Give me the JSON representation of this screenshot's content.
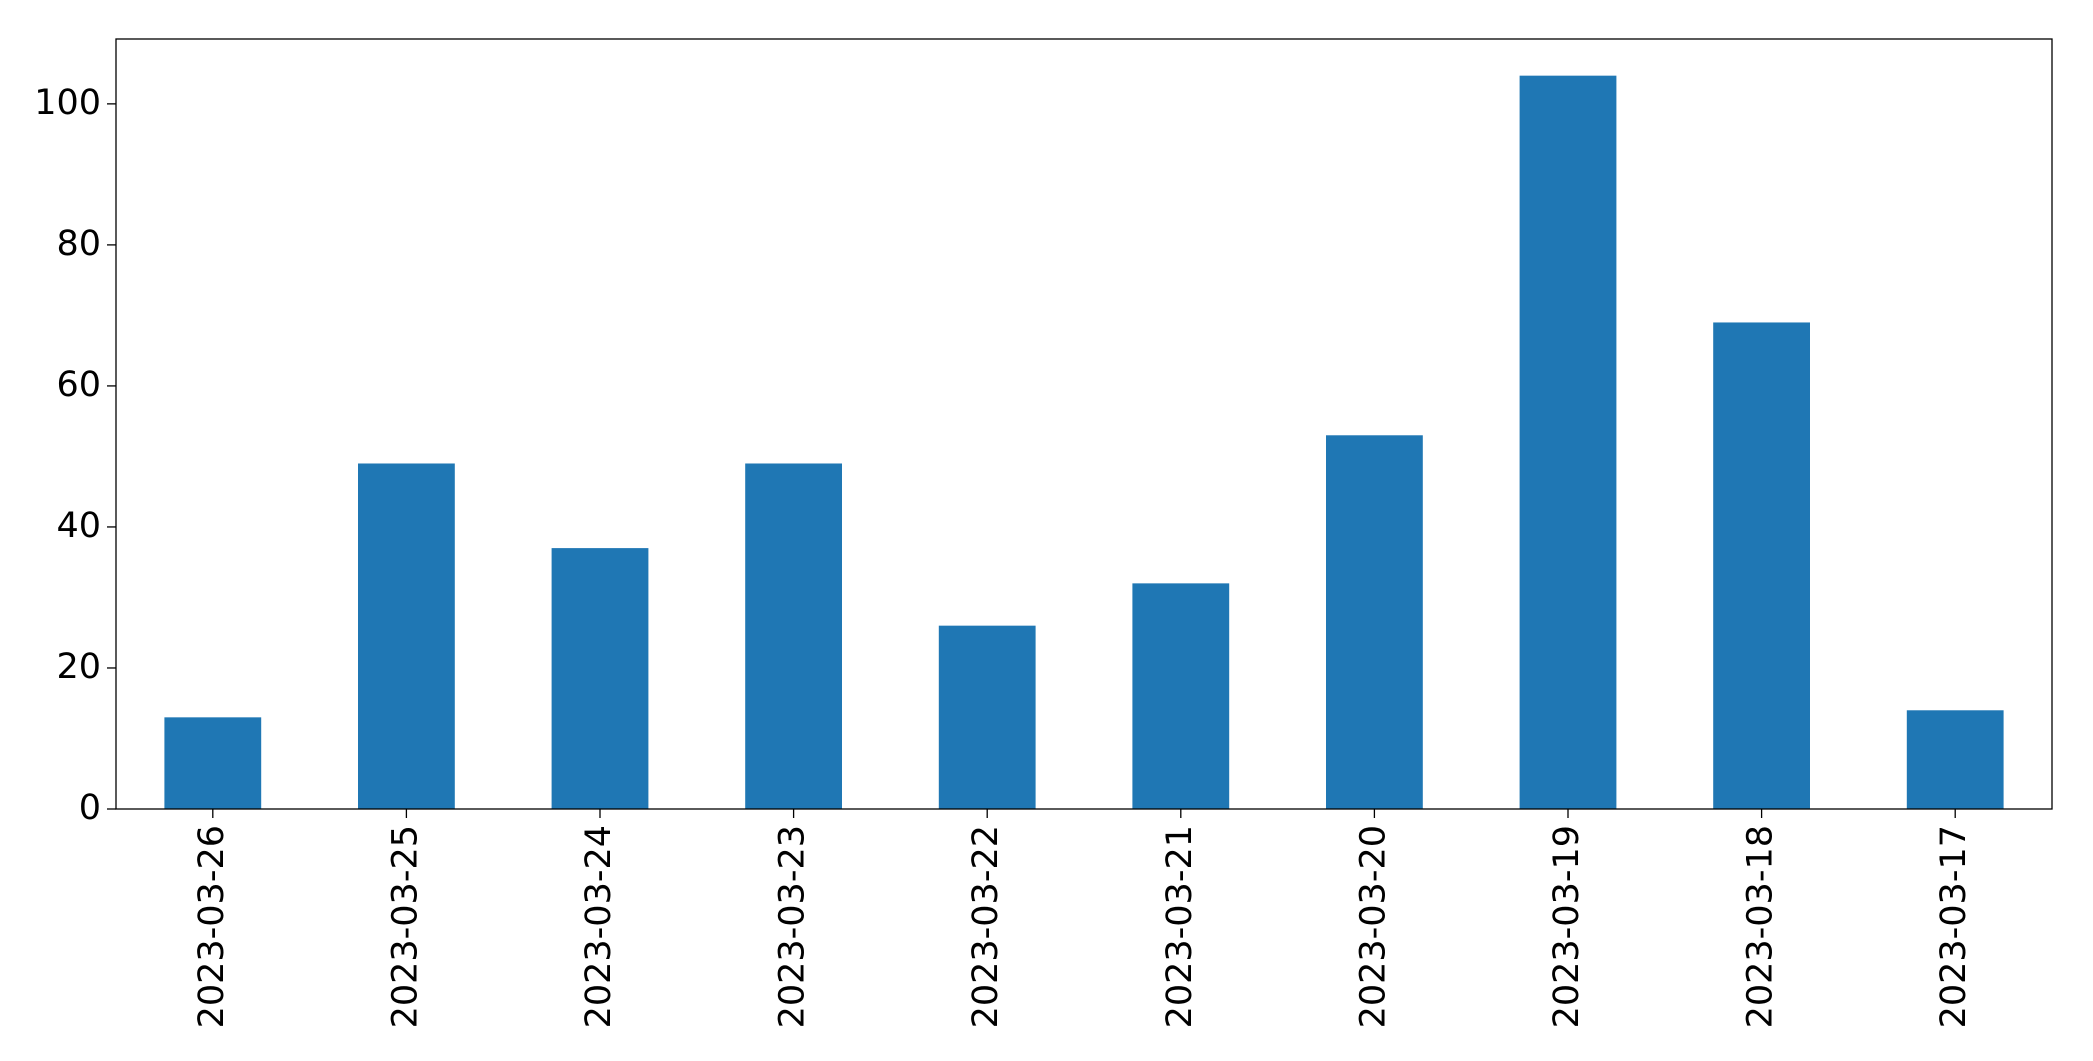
{
  "chart_data": {
    "type": "bar",
    "categories": [
      "2023-03-26",
      "2023-03-25",
      "2023-03-24",
      "2023-03-23",
      "2023-03-22",
      "2023-03-21",
      "2023-03-20",
      "2023-03-19",
      "2023-03-18",
      "2023-03-17"
    ],
    "values": [
      13,
      49,
      37,
      49,
      26,
      32,
      53,
      104,
      69,
      14
    ],
    "color": "#1f77b4",
    "ylim": [
      0,
      109.2
    ],
    "yticks": [
      0,
      20,
      40,
      60,
      80,
      100
    ],
    "grid": false
  }
}
